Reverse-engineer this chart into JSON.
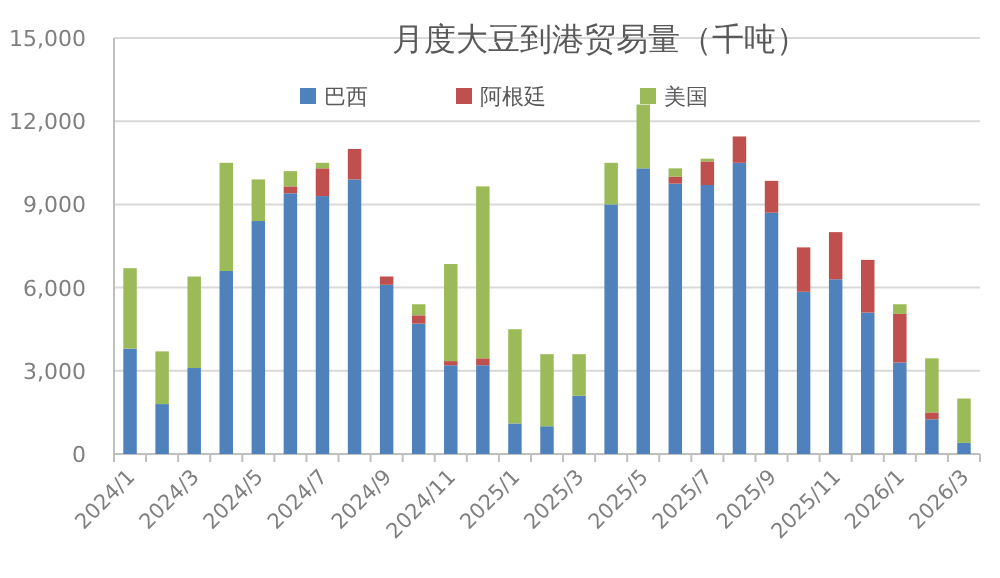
{
  "chart_data": {
    "type": "bar",
    "title": "月度大豆到港贸易量（千吨）",
    "stacked": true,
    "legend": "top",
    "grid": "y",
    "categories": [
      "2024/1",
      null,
      "2024/3",
      null,
      "2024/5",
      null,
      "2024/7",
      null,
      "2024/9",
      null,
      "2024/11",
      null,
      "2025/1",
      null,
      "2025/3",
      null,
      "2025/5",
      null,
      "2025/7",
      null,
      "2025/9",
      null,
      "2025/11",
      null,
      "2026/1",
      null,
      "2026/3"
    ],
    "series": [
      {
        "name": "巴西",
        "color": "#4f81bd",
        "values": [
          3800,
          1800,
          3100,
          6600,
          8400,
          9400,
          9300,
          9900,
          6100,
          4700,
          3200,
          3200,
          1100,
          1000,
          2100,
          9000,
          10300,
          9750,
          9700,
          10500,
          8700,
          5850,
          6300,
          5100,
          3300,
          1250,
          400
        ]
      },
      {
        "name": "阿根廷",
        "color": "#c0504d",
        "values": [
          0,
          0,
          0,
          0,
          0,
          250,
          1000,
          1100,
          300,
          300,
          150,
          250,
          0,
          0,
          0,
          0,
          0,
          250,
          850,
          950,
          1150,
          1600,
          1700,
          1900,
          1750,
          250,
          0
        ]
      },
      {
        "name": "美国",
        "color": "#9bbb59",
        "values": [
          2900,
          1900,
          3300,
          3900,
          1500,
          550,
          200,
          0,
          0,
          400,
          3500,
          6200,
          3400,
          2600,
          1500,
          1500,
          2300,
          300,
          100,
          0,
          0,
          0,
          0,
          0,
          350,
          1950,
          1600
        ]
      }
    ],
    "ylim": [
      0,
      15000
    ],
    "yticks": [
      0,
      {
        "value": 3000,
        "label": "3,000"
      },
      {
        "value": 6000,
        "label": "6,000"
      },
      {
        "value": 9000,
        "label": "9,000"
      },
      {
        "value": 12000,
        "label": "12,000"
      },
      {
        "value": 15000,
        "label": "15,000"
      }
    ]
  }
}
